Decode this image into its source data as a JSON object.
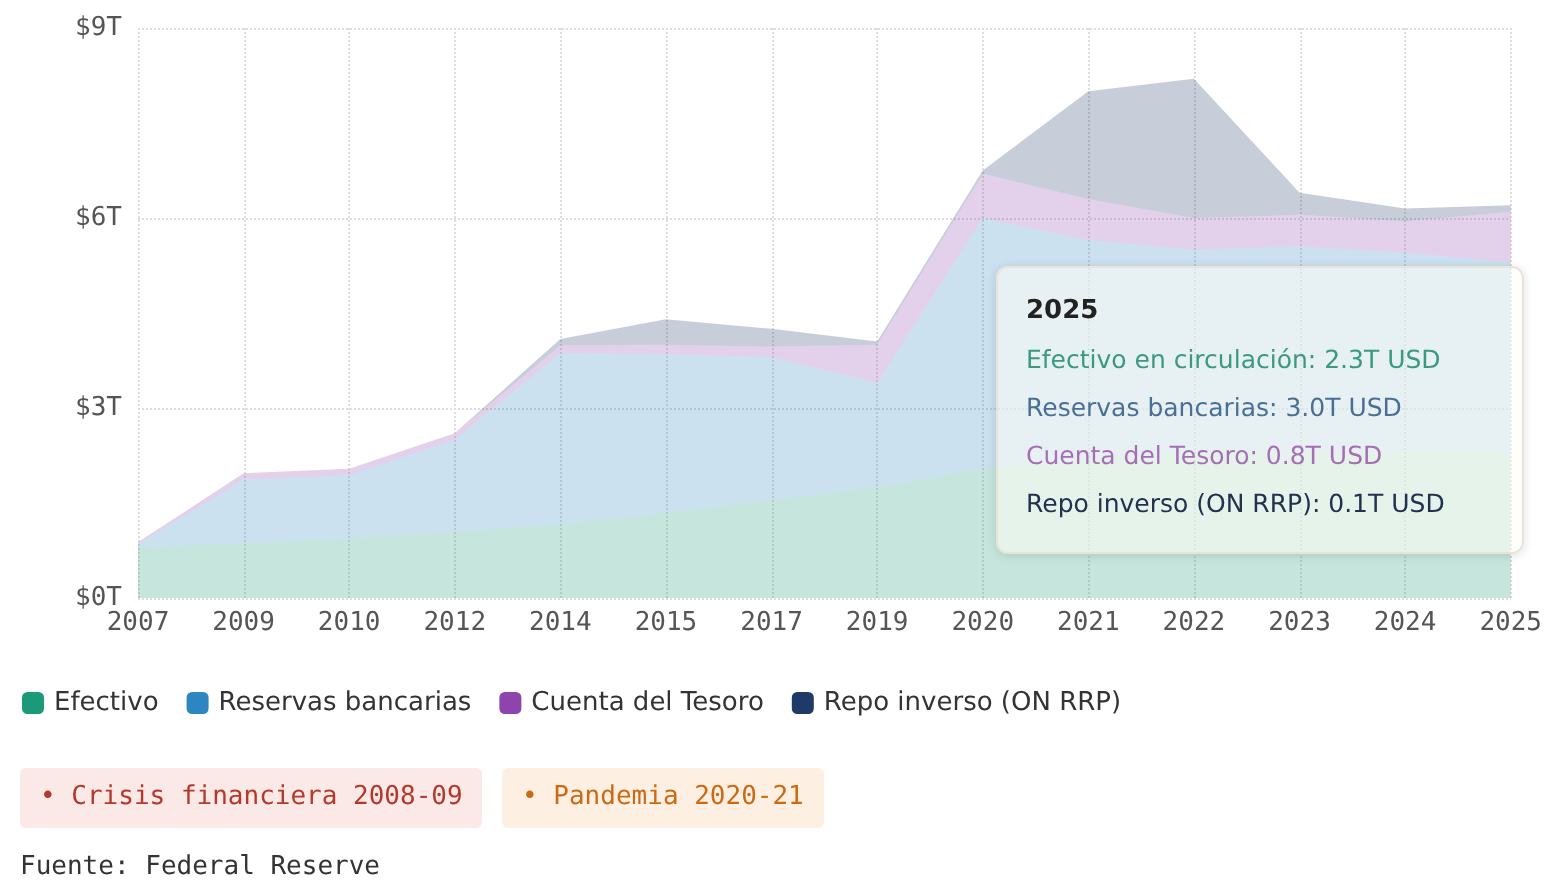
{
  "chart_data": {
    "type": "area",
    "stacked": true,
    "categories": [
      "2007",
      "2009",
      "2010",
      "2012",
      "2014",
      "2015",
      "2017",
      "2019",
      "2020",
      "2021",
      "2022",
      "2023",
      "2024",
      "2025"
    ],
    "series": [
      {
        "name": "Efectivo",
        "color": "#1a9a78",
        "values": [
          0.8,
          0.87,
          0.94,
          1.05,
          1.17,
          1.35,
          1.55,
          1.75,
          2.05,
          2.2,
          2.3,
          2.3,
          2.3,
          2.3
        ]
      },
      {
        "name": "Reservas bancarias",
        "color": "#2e86c1",
        "values": [
          0.05,
          1.0,
          1.0,
          1.45,
          2.7,
          2.5,
          2.25,
          1.65,
          3.95,
          3.45,
          3.2,
          3.25,
          3.15,
          3.0
        ]
      },
      {
        "name": "Cuenta del Tesoro",
        "color": "#8e44ad",
        "values": [
          0.03,
          0.1,
          0.1,
          0.1,
          0.12,
          0.15,
          0.17,
          0.6,
          0.7,
          0.65,
          0.5,
          0.5,
          0.5,
          0.8
        ]
      },
      {
        "name": "Repo inverso (ON RRP)",
        "color": "#1f3a68",
        "values": [
          0,
          0,
          0,
          0,
          0.1,
          0.4,
          0.28,
          0.05,
          0.05,
          1.7,
          2.2,
          0.35,
          0.2,
          0.1
        ]
      }
    ],
    "ylim": [
      0,
      9
    ],
    "yticks": [
      {
        "value": 0,
        "label": "$0T"
      },
      {
        "value": 3,
        "label": "$3T"
      },
      {
        "value": 6,
        "label": "$6T"
      },
      {
        "value": 9,
        "label": "$9T"
      }
    ],
    "grid": true,
    "legend": "bottom",
    "annotations": [
      "2025",
      "Efectivo en circulación: 2.3T USD",
      "Reservas bancarias: 3.0T USD",
      "Cuenta del Tesoro: 0.8T USD",
      "Repo inverso (ON RRP): 0.1T USD",
      "• Crisis financiera 2008-09",
      "• Pandemia 2020-21",
      "Fuente: Federal Reserve"
    ]
  }
}
